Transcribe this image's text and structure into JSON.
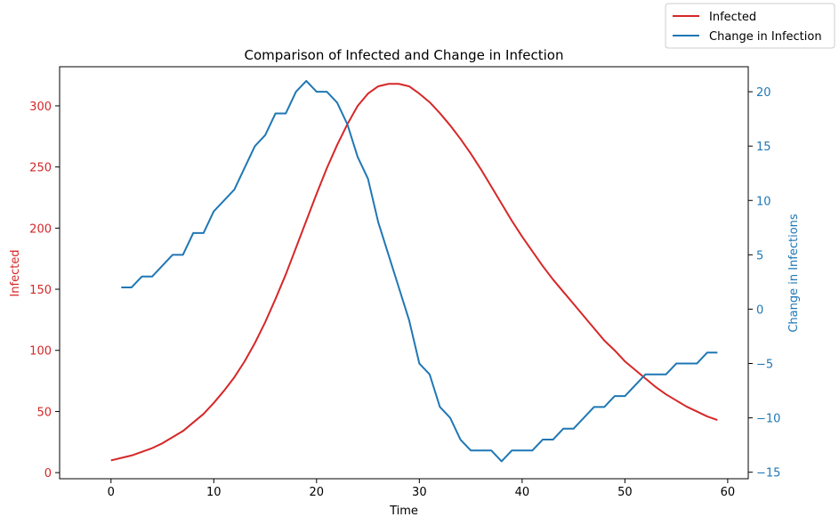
{
  "chart_data": {
    "type": "line",
    "title": "Comparison of Infected and Change in Infection",
    "xlabel": "Time",
    "ylabel_left": "Infected",
    "ylabel_right": "Change in Infections",
    "xlim": [
      -5,
      62
    ],
    "ylim_left": [
      -5,
      332
    ],
    "ylim_right": [
      -15.6,
      22.3
    ],
    "x_ticks": [
      0,
      10,
      20,
      30,
      40,
      50,
      60
    ],
    "y_ticks_left": [
      0,
      50,
      100,
      150,
      200,
      250,
      300
    ],
    "y_ticks_right": [
      -15,
      -10,
      -5,
      0,
      5,
      10,
      15,
      20
    ],
    "grid": false,
    "legend_position": "top-right, outside plot",
    "series": [
      {
        "name": "Infected",
        "axis": "left",
        "color": "#d62728",
        "x": [
          0,
          1,
          2,
          3,
          4,
          5,
          6,
          7,
          8,
          9,
          10,
          11,
          12,
          13,
          14,
          15,
          16,
          17,
          18,
          19,
          20,
          21,
          22,
          23,
          24,
          25,
          26,
          27,
          28,
          29,
          30,
          31,
          32,
          33,
          34,
          35,
          36,
          37,
          38,
          39,
          40,
          41,
          42,
          43,
          44,
          45,
          46,
          47,
          48,
          49,
          50,
          51,
          52,
          53,
          54,
          55,
          56,
          57,
          58,
          59
        ],
        "values": [
          10,
          12,
          14,
          17,
          20,
          24,
          29,
          34,
          41,
          48,
          57,
          67,
          78,
          91,
          106,
          123,
          142,
          162,
          184,
          206,
          228,
          249,
          268,
          285,
          300,
          310,
          316,
          318,
          318,
          316,
          310,
          303,
          294,
          284,
          273,
          261,
          248,
          234,
          220,
          206,
          193,
          181,
          169,
          158,
          148,
          138,
          128,
          118,
          108,
          100,
          91,
          84,
          77,
          70,
          64,
          59,
          54,
          50,
          46,
          43
        ]
      },
      {
        "name": "Change in Infection",
        "axis": "right",
        "color": "#1f77b4",
        "x": [
          1,
          2,
          3,
          4,
          5,
          6,
          7,
          8,
          9,
          10,
          11,
          12,
          13,
          14,
          15,
          16,
          17,
          18,
          19,
          20,
          21,
          22,
          23,
          24,
          25,
          26,
          27,
          28,
          29,
          30,
          31,
          32,
          33,
          34,
          35,
          36,
          37,
          38,
          39,
          40,
          41,
          42,
          43,
          44,
          45,
          46,
          47,
          48,
          49,
          50,
          51,
          52,
          53,
          54,
          55,
          56,
          57,
          58,
          59
        ],
        "values": [
          2,
          2,
          3,
          3,
          4,
          5,
          5,
          7,
          7,
          9,
          10,
          11,
          13,
          15,
          16,
          18,
          18,
          20,
          21,
          20,
          20,
          19,
          17,
          14,
          12,
          8,
          5,
          2,
          -1,
          -5,
          -6,
          -9,
          -10,
          -12,
          -13,
          -13,
          -13,
          -14,
          -13,
          -13,
          -13,
          -12,
          -12,
          -11,
          -11,
          -10,
          -9,
          -9,
          -8,
          -8,
          -7,
          -6,
          -6,
          -6,
          -5,
          -5,
          -5,
          -4,
          -4
        ]
      }
    ]
  }
}
